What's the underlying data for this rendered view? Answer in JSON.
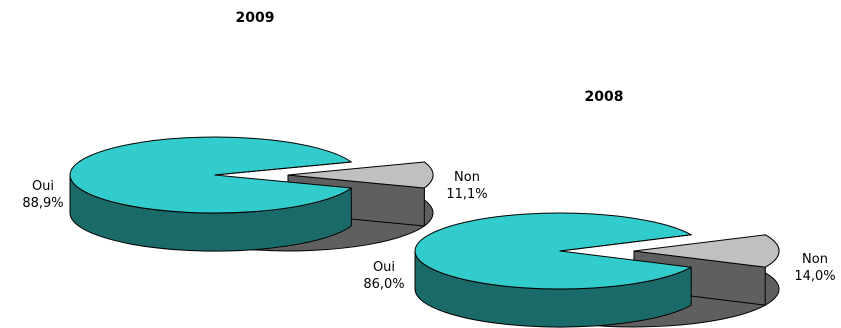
{
  "colors": {
    "oui_top": "#33cccc",
    "oui_side": "#1b6a6a",
    "non_top": "#c0c0c0",
    "non_side": "#5f5f5f"
  },
  "chart_data": [
    {
      "type": "pie",
      "style": "3d-exploded",
      "title": "2009",
      "slices": [
        {
          "label": "Oui",
          "value": 88.9,
          "text": "88,9%",
          "color": "#33cccc"
        },
        {
          "label": "Non",
          "value": 11.1,
          "text": "11,1%",
          "color": "#c0c0c0"
        }
      ]
    },
    {
      "type": "pie",
      "style": "3d-exploded",
      "title": "2008",
      "slices": [
        {
          "label": "Oui",
          "value": 86.0,
          "text": "86,0%",
          "color": "#33cccc"
        },
        {
          "label": "Non",
          "value": 14.0,
          "text": "14,0%",
          "color": "#c0c0c0"
        }
      ]
    }
  ]
}
